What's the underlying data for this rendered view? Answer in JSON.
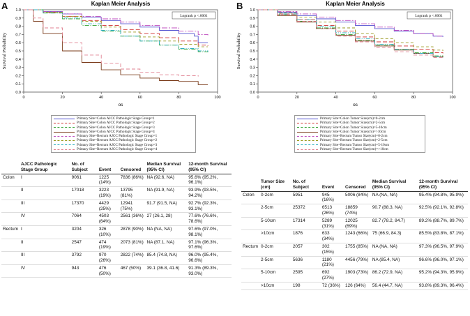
{
  "panels": [
    {
      "label": "A",
      "chart_data": {
        "type": "line",
        "title": "Kaplan Meier Analysis",
        "xlabel": "os",
        "ylabel": "Survival Probability",
        "xlim": [
          0,
          100
        ],
        "ylim": [
          0.0,
          1.0
        ],
        "xticks": [
          "0",
          "20",
          "40",
          "60",
          "80",
          "100"
        ],
        "yticks": [
          "0.0",
          "0.1",
          "0.2",
          "0.3",
          "0.4",
          "0.5",
          "0.6",
          "0.7",
          "0.8",
          "0.9",
          "1.0"
        ],
        "annotation": "Logrank p <.0001",
        "series": [
          {
            "name": "Primary Site=Colon AJCC Pathologic Stage Group=1",
            "color": "#5050d0",
            "dash": "",
            "x": [
              0,
              10,
              20,
              30,
              40,
              50,
              60,
              70,
              80,
              88,
              90,
              95
            ],
            "y": [
              1.0,
              0.98,
              0.95,
              0.91,
              0.87,
              0.83,
              0.79,
              0.75,
              0.71,
              0.68,
              0.6,
              0.6
            ]
          },
          {
            "name": "Primary Site=Colon AJCC Pathologic Stage Group=2",
            "color": "#d03030",
            "dash": "6,3",
            "x": [
              0,
              10,
              20,
              30,
              40,
              50,
              60,
              70,
              80,
              90,
              95
            ],
            "y": [
              1.0,
              0.97,
              0.92,
              0.87,
              0.81,
              0.76,
              0.71,
              0.66,
              0.62,
              0.57,
              0.56
            ]
          },
          {
            "name": "Primary Site=Colon AJCC Pathologic Stage Group=3",
            "color": "#30a030",
            "dash": "6,2,1,2",
            "x": [
              0,
              10,
              20,
              30,
              40,
              50,
              60,
              70,
              80,
              90,
              95
            ],
            "y": [
              1.0,
              0.96,
              0.89,
              0.81,
              0.74,
              0.68,
              0.62,
              0.57,
              0.52,
              0.49,
              0.48
            ]
          },
          {
            "name": "Primary Site=Colon AJCC Pathologic Stage Group=4",
            "color": "#7a3b1a",
            "dash": "",
            "x": [
              0,
              5,
              10,
              20,
              30,
              40,
              50,
              60,
              70,
              80,
              90,
              95
            ],
            "y": [
              1.0,
              0.86,
              0.71,
              0.5,
              0.36,
              0.27,
              0.21,
              0.17,
              0.14,
              0.13,
              0.09,
              0.09
            ]
          },
          {
            "name": "Primary Site=Rectum AJCC Pathologic Stage Group=1",
            "color": "#c050c0",
            "dash": "8,2,2,2",
            "x": [
              0,
              10,
              20,
              30,
              40,
              50,
              60,
              70,
              80,
              90,
              95
            ],
            "y": [
              1.0,
              0.98,
              0.95,
              0.92,
              0.89,
              0.85,
              0.81,
              0.78,
              0.74,
              0.7,
              0.69
            ]
          },
          {
            "name": "Primary Site=Rectum AJCC Pathologic Stage Group=2",
            "color": "#9a9a20",
            "dash": "4,3",
            "x": [
              0,
              10,
              20,
              30,
              40,
              50,
              60,
              70,
              80,
              90,
              95
            ],
            "y": [
              1.0,
              0.97,
              0.92,
              0.86,
              0.79,
              0.73,
              0.67,
              0.62,
              0.58,
              0.55,
              0.55
            ]
          },
          {
            "name": "Primary Site=Rectum AJCC Pathologic Stage Group=3",
            "color": "#30b0c0",
            "dash": "6,2,1,2,1,2",
            "x": [
              0,
              10,
              20,
              30,
              40,
              50,
              60,
              70,
              80,
              90,
              95
            ],
            "y": [
              1.0,
              0.96,
              0.9,
              0.83,
              0.75,
              0.68,
              0.62,
              0.57,
              0.53,
              0.5,
              0.49
            ]
          },
          {
            "name": "Primary Site=Rectum AJCC Pathologic Stage Group=4",
            "color": "#e08090",
            "dash": "5,3",
            "x": [
              0,
              5,
              10,
              20,
              30,
              40,
              50,
              60,
              70,
              80,
              90
            ],
            "y": [
              1.0,
              0.9,
              0.78,
              0.6,
              0.45,
              0.35,
              0.28,
              0.24,
              0.21,
              0.2,
              0.19
            ]
          }
        ]
      },
      "table": {
        "headers": [
          "",
          "AJCC Pathologic Stage Group",
          "No. of Subject",
          "Event",
          "Censored",
          "Median Survival (95% CI)",
          "12-month Survival (95% CI)"
        ],
        "rows": [
          [
            "Colon",
            "I",
            "9061",
            "1225 (14%)",
            "7836 (86%)",
            "NA (92.6, NA)",
            "95.6% (95.2%, 96.1%)"
          ],
          [
            "",
            "II",
            "17018",
            "3223 (19%)",
            "13795 (81%)",
            "NA (91.9, NA)",
            "93.9% (93.5%, 94.2%)"
          ],
          [
            "",
            "III",
            "17370",
            "4429 (25%)",
            "12941 (75%)",
            "91.7 (91.5, NA)",
            "92.7% (92.3%, 93.1%)"
          ],
          [
            "",
            "IV",
            "7064",
            "4503 (64%)",
            "2561 (36%)",
            "27 (26.1, 28)",
            "77.6% (76.6%, 78.6%)"
          ],
          [
            "Rectum",
            "I",
            "3204",
            "326 (10%)",
            "2878 (90%)",
            "NA (NA, NA)",
            "97.6% (97.0%, 98.1%)"
          ],
          [
            "",
            "II",
            "2547",
            "474 (19%)",
            "2073 (81%)",
            "NA (87.1, NA)",
            "97.1% (96.3%, 97.6%)"
          ],
          [
            "",
            "III",
            "3792",
            "970 (26%)",
            "2822 (74%)",
            "85.4 (74.8, NA)",
            "96.0% (95.4%, 96.6%)"
          ],
          [
            "",
            "IV",
            "943",
            "476 (50%)",
            "467 (50%)",
            "39.1 (36.8, 41.6)",
            "91.3% (89.3%, 93.0%)"
          ]
        ]
      }
    },
    {
      "label": "B",
      "chart_data": {
        "type": "line",
        "title": "Kaplan Meier Analysis",
        "xlabel": "os",
        "ylabel": "Survival Probability",
        "xlim": [
          0,
          100
        ],
        "ylim": [
          0.0,
          1.0
        ],
        "xticks": [
          "0",
          "20",
          "40",
          "60",
          "80",
          "100"
        ],
        "yticks": [
          "0.0",
          "0.1",
          "0.2",
          "0.3",
          "0.4",
          "0.5",
          "0.6",
          "0.7",
          "0.8",
          "0.9",
          "1.0"
        ],
        "annotation": "Logrank p <.0001",
        "series": [
          {
            "name": "Primary Site=Colon Tumor Size(cm)=0-2cm",
            "color": "#5050d0",
            "dash": "",
            "x": [
              0,
              10,
              20,
              30,
              40,
              50,
              60,
              70,
              80,
              90,
              95
            ],
            "y": [
              1.0,
              0.97,
              0.93,
              0.89,
              0.85,
              0.81,
              0.77,
              0.74,
              0.71,
              0.68,
              0.67
            ]
          },
          {
            "name": "Primary Site=Colon Tumor Size(cm)=2-5cm",
            "color": "#d03030",
            "dash": "6,3",
            "x": [
              0,
              10,
              20,
              30,
              40,
              50,
              60,
              70,
              80,
              90,
              95
            ],
            "y": [
              1.0,
              0.95,
              0.88,
              0.81,
              0.74,
              0.67,
              0.61,
              0.56,
              0.52,
              0.48,
              0.47
            ]
          },
          {
            "name": "Primary Site=Colon Tumor Size(cm)=5-10cm",
            "color": "#30a030",
            "dash": "6,2,1,2",
            "x": [
              0,
              10,
              20,
              30,
              40,
              50,
              60,
              70,
              80,
              90,
              95
            ],
            "y": [
              1.0,
              0.94,
              0.86,
              0.78,
              0.7,
              0.63,
              0.57,
              0.52,
              0.48,
              0.44,
              0.43
            ]
          },
          {
            "name": "Primary Site=Colon Tumor Size(cm)=>10cm",
            "color": "#7a3b1a",
            "dash": "",
            "x": [
              0,
              10,
              20,
              30,
              40,
              50,
              60,
              70,
              80,
              90,
              95
            ],
            "y": [
              1.0,
              0.93,
              0.85,
              0.77,
              0.69,
              0.62,
              0.56,
              0.51,
              0.47,
              0.43,
              0.42
            ]
          },
          {
            "name": "Primary Site=Rectum Tumor Size(cm)=0-2cm",
            "color": "#c050c0",
            "dash": "8,2,2,2",
            "x": [
              0,
              10,
              20,
              30,
              40,
              50,
              60,
              70,
              80,
              90,
              95
            ],
            "y": [
              1.0,
              0.98,
              0.95,
              0.91,
              0.87,
              0.83,
              0.79,
              0.75,
              0.71,
              0.68,
              0.67
            ]
          },
          {
            "name": "Primary Site=Rectum Tumor Size(cm)=2-5cm",
            "color": "#9a9a20",
            "dash": "4,3",
            "x": [
              0,
              10,
              20,
              30,
              40,
              50,
              60,
              70,
              80,
              90,
              95
            ],
            "y": [
              1.0,
              0.96,
              0.91,
              0.85,
              0.78,
              0.71,
              0.65,
              0.6,
              0.55,
              0.51,
              0.5
            ]
          },
          {
            "name": "Primary Site=Rectum Tumor Size(cm)=5-10cm",
            "color": "#30b0c0",
            "dash": "6,2,1,2,1,2",
            "x": [
              0,
              10,
              20,
              30,
              40,
              50,
              60,
              70,
              80,
              90,
              95
            ],
            "y": [
              1.0,
              0.95,
              0.88,
              0.8,
              0.72,
              0.65,
              0.58,
              0.52,
              0.47,
              0.43,
              0.42
            ]
          },
          {
            "name": "Primary Site=Rectum Tumor Size(cm)=>10cm",
            "color": "#e08090",
            "dash": "5,3",
            "x": [
              0,
              10,
              20,
              30,
              40,
              50,
              60,
              70,
              80,
              90,
              95
            ],
            "y": [
              1.0,
              0.94,
              0.86,
              0.77,
              0.68,
              0.61,
              0.54,
              0.49,
              0.45,
              0.42,
              0.42
            ]
          }
        ]
      },
      "table": {
        "headers": [
          "",
          "Tumor Size (cm)",
          "No. of Subject",
          "Event",
          "Censored",
          "Median Survival (95% CI)",
          "12-month Survival (95% CI)"
        ],
        "rows": [
          [
            "Colon",
            "0-2cm",
            "5951",
            "945 (16%)",
            "5006 (84%)",
            "NA (NA, NA)",
            "95.4% (94.8%, 95.9%)"
          ],
          [
            "",
            "2-5cm",
            "25372",
            "6513 (26%)",
            "18859 (74%)",
            "90.7 (88.3, NA)",
            "92.5% (92.1%, 92.8%)"
          ],
          [
            "",
            "5-10cm",
            "17314",
            "5289 (31%)",
            "12025 (69%)",
            "82.7 (78.2, 84.7)",
            "89.2% (88.7%, 89.7%)"
          ],
          [
            "",
            ">10cm",
            "1876",
            "633 (34%)",
            "1243 (66%)",
            "75 (66.9, 84.3)",
            "85.5% (83.8%, 87.1%)"
          ],
          [
            "Rectum",
            "0-2cm",
            "2057",
            "302 (15%)",
            "1755 (85%)",
            "NA (NA, NA)",
            "97.3% (96.5%, 97.9%)"
          ],
          [
            "",
            "2-5cm",
            "5636",
            "1180 (21%)",
            "4456 (79%)",
            "NA (85.4, NA)",
            "96.6% (96.0%, 97.1%)"
          ],
          [
            "",
            "5-10cm",
            "2595",
            "692 (27%)",
            "1903 (73%)",
            "86.2 (72.9, NA)",
            "95.2% (94.3%, 95.9%)"
          ],
          [
            "",
            ">10cm",
            "198",
            "72 (36%)",
            "126 (64%)",
            "56.4 (44.7, NA)",
            "93.8% (89.3%, 96.4%)"
          ]
        ]
      }
    }
  ]
}
